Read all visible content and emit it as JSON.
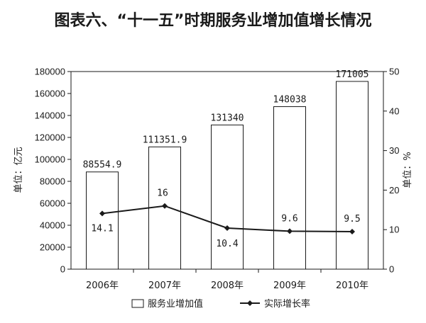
{
  "chart_data": {
    "type": "bar",
    "title": "图表六、“十一五”时期服务业增加值增长情况",
    "categories": [
      "2006年",
      "2007年",
      "2008年",
      "2009年",
      "2010年"
    ],
    "series": [
      {
        "name": "服务业增加值",
        "type": "bar",
        "axis": "left",
        "values": [
          88554.9,
          111351.9,
          131340,
          148038,
          171005
        ],
        "labels": [
          "88554.9",
          "111351.9",
          "131340",
          "148038",
          "171005"
        ]
      },
      {
        "name": "实际增长率",
        "type": "line",
        "axis": "right",
        "values": [
          14.1,
          16,
          10.4,
          9.6,
          9.5
        ],
        "labels": [
          "14.1",
          "16",
          "10.4",
          "9.6",
          "9.5"
        ]
      }
    ],
    "ylabel": "单位：亿元",
    "y2label": "单位：%",
    "ylim": [
      0,
      180000
    ],
    "y2lim": [
      0,
      50
    ],
    "yticks": [
      0,
      20000,
      40000,
      60000,
      80000,
      100000,
      120000,
      140000,
      160000,
      180000
    ],
    "y2ticks": [
      0,
      10,
      20,
      30,
      40,
      50
    ],
    "legend_position": "bottom",
    "grid": false
  }
}
